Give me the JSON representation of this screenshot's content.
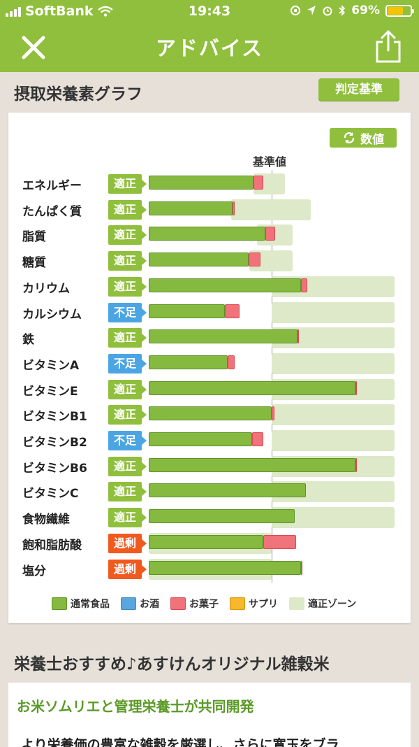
{
  "status_bar": {
    "carrier": "SoftBank",
    "time": "19:43",
    "battery": "69%"
  },
  "nav": {
    "title": "アドバイス"
  },
  "section1": {
    "title": "摂取栄養素グラフ",
    "criteria_button": "判定基準"
  },
  "value_button": "数値",
  "reference_label": "基準値",
  "colors": {
    "accent": "#8fbf3c",
    "normal": "#86b93f",
    "snack": "#f0727a",
    "alcohol": "#5aa7df",
    "supplement": "#f5b82e",
    "zone": "#dde9c8",
    "status_ok": "#8fbf3c",
    "status_low": "#4ba5e3",
    "status_high": "#f05a1e"
  },
  "chart_data": {
    "type": "bar",
    "reference": "基準値",
    "categories": [
      "エネルギー",
      "たんぱく質",
      "脂質",
      "糖質",
      "カリウム",
      "カルシウム",
      "鉄",
      "ビタミンA",
      "ビタミンE",
      "ビタミンB1",
      "ビタミンB2",
      "ビタミンB6",
      "ビタミンC",
      "食物繊維",
      "飽和脂肪酸",
      "塩分"
    ],
    "status": [
      "適正",
      "適正",
      "適正",
      "適正",
      "適正",
      "不足",
      "適正",
      "不足",
      "適正",
      "適正",
      "不足",
      "適正",
      "適正",
      "適正",
      "過剰",
      "過剰"
    ],
    "status_type": [
      "ok",
      "ok",
      "ok",
      "ok",
      "ok",
      "low",
      "ok",
      "low",
      "ok",
      "ok",
      "low",
      "ok",
      "ok",
      "ok",
      "high",
      "high"
    ],
    "series": [
      {
        "name": "通常食品",
        "values": [
          85,
          68,
          95,
          81,
          124,
          62,
          121,
          64,
          168,
          100,
          84,
          168,
          128,
          119,
          93,
          124
        ]
      },
      {
        "name": "お菓子",
        "values": [
          8,
          2,
          8,
          10,
          5,
          12,
          1,
          6,
          1,
          2,
          9,
          1,
          0,
          0,
          27,
          1
        ]
      }
    ],
    "zone": [
      [
        85,
        111
      ],
      [
        67,
        132
      ],
      [
        88,
        117
      ],
      [
        82,
        117
      ],
      [
        100,
        200
      ],
      [
        100,
        200
      ],
      [
        100,
        200
      ],
      [
        100,
        200
      ],
      [
        100,
        200
      ],
      [
        100,
        200
      ],
      [
        100,
        200
      ],
      [
        100,
        200
      ],
      [
        100,
        200
      ],
      [
        100,
        200
      ],
      [
        0,
        100
      ],
      [
        0,
        100
      ]
    ],
    "legend": [
      "通常食品",
      "お酒",
      "お菓子",
      "サプリ",
      "適正ゾーン"
    ]
  },
  "section2": {
    "title": "栄養士おすすめ♪あすけんオリジナル雑穀米",
    "subtitle": "お米ソムリエと管理栄養士が共同開発",
    "body": "より栄養価の豊富な雑穀を厳選し、さらに寛玉をブラ"
  }
}
